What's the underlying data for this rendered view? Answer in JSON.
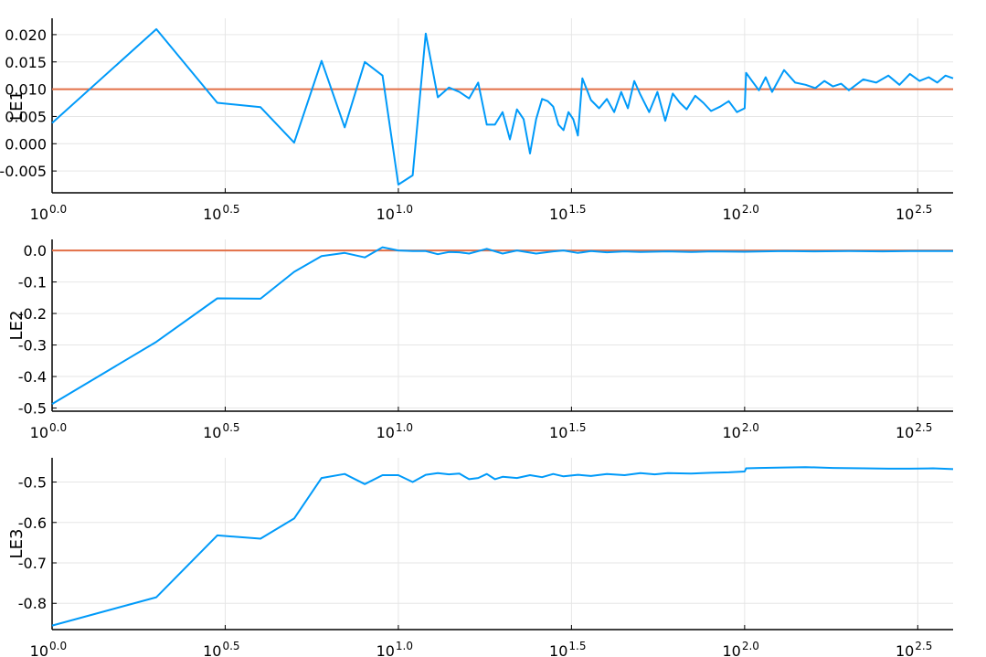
{
  "chart_data": [
    {
      "type": "line",
      "ylabel": "LE1",
      "xscale": "log10",
      "xlim": [
        1,
        400
      ],
      "ylim": [
        -0.009,
        0.023
      ],
      "grid": true,
      "legend": "none",
      "x_ticks": [
        {
          "base": "10",
          "exp": "0.0",
          "value": 1
        },
        {
          "base": "10",
          "exp": "0.5",
          "value": 3.162
        },
        {
          "base": "10",
          "exp": "1.0",
          "value": 10
        },
        {
          "base": "10",
          "exp": "1.5",
          "value": 31.62
        },
        {
          "base": "10",
          "exp": "2.0",
          "value": 100
        },
        {
          "base": "10",
          "exp": "2.5",
          "value": 316.2
        }
      ],
      "y_ticks": [
        {
          "value": -0.005,
          "label": "-0.005"
        },
        {
          "value": 0.0,
          "label": "0.000"
        },
        {
          "value": 0.005,
          "label": "0.005"
        },
        {
          "value": 0.01,
          "label": "0.010"
        },
        {
          "value": 0.015,
          "label": "0.015"
        },
        {
          "value": 0.02,
          "label": "0.020"
        }
      ],
      "reference_line": {
        "y": 0.01,
        "color": "#e26f46"
      },
      "series": [
        {
          "color": "#009af9",
          "x": [
            1,
            2,
            3,
            4,
            5,
            6,
            7,
            8,
            9,
            10,
            11,
            12,
            13,
            14,
            15,
            16,
            17,
            18,
            19,
            20,
            21,
            22,
            23,
            24,
            25,
            26,
            27,
            28,
            29,
            30,
            31,
            32,
            33,
            34,
            36,
            38,
            40,
            42,
            44,
            46,
            48,
            50,
            53,
            56,
            59,
            62,
            65,
            68,
            72,
            76,
            80,
            85,
            90,
            95,
            100,
            101,
            105,
            110,
            115,
            120,
            130,
            140,
            150,
            160,
            170,
            180,
            190,
            200,
            220,
            240,
            260,
            280,
            300,
            320,
            340,
            360,
            380,
            400
          ],
          "y": [
            0.0038,
            0.021,
            0.0075,
            0.0067,
            0.0002,
            0.0152,
            0.003,
            0.015,
            0.0125,
            -0.0075,
            -0.0058,
            0.0202,
            0.0085,
            0.0103,
            0.0095,
            0.0083,
            0.0112,
            0.0035,
            0.0035,
            0.0058,
            0.0008,
            0.0063,
            0.0045,
            -0.0018,
            0.0045,
            0.0082,
            0.0078,
            0.0068,
            0.0035,
            0.0025,
            0.0058,
            0.0045,
            0.0015,
            0.012,
            0.008,
            0.0065,
            0.0082,
            0.0058,
            0.0095,
            0.0065,
            0.0115,
            0.009,
            0.0058,
            0.0095,
            0.0042,
            0.0092,
            0.0075,
            0.0063,
            0.0088,
            0.0075,
            0.006,
            0.0068,
            0.0078,
            0.0058,
            0.0065,
            0.013,
            0.0115,
            0.0098,
            0.0122,
            0.0095,
            0.0135,
            0.0112,
            0.0108,
            0.0102,
            0.0115,
            0.0105,
            0.011,
            0.0098,
            0.0118,
            0.0112,
            0.0125,
            0.0108,
            0.0128,
            0.0115,
            0.0122,
            0.0112,
            0.0125,
            0.012
          ]
        }
      ]
    },
    {
      "type": "line",
      "ylabel": "LE2",
      "xscale": "log10",
      "xlim": [
        1,
        400
      ],
      "ylim": [
        -0.51,
        0.035
      ],
      "grid": true,
      "legend": "none",
      "x_ticks": [
        {
          "base": "10",
          "exp": "0.0",
          "value": 1
        },
        {
          "base": "10",
          "exp": "0.5",
          "value": 3.162
        },
        {
          "base": "10",
          "exp": "1.0",
          "value": 10
        },
        {
          "base": "10",
          "exp": "1.5",
          "value": 31.62
        },
        {
          "base": "10",
          "exp": "2.0",
          "value": 100
        },
        {
          "base": "10",
          "exp": "2.5",
          "value": 316.2
        }
      ],
      "y_ticks": [
        {
          "value": -0.5,
          "label": "-0.5"
        },
        {
          "value": -0.4,
          "label": "-0.4"
        },
        {
          "value": -0.3,
          "label": "-0.3"
        },
        {
          "value": -0.2,
          "label": "-0.2"
        },
        {
          "value": -0.1,
          "label": "-0.1"
        },
        {
          "value": 0.0,
          "label": "0.0"
        }
      ],
      "reference_line": {
        "y": 0.0,
        "color": "#e26f46"
      },
      "series": [
        {
          "color": "#009af9",
          "x": [
            1,
            2,
            3,
            4,
            5,
            6,
            7,
            8,
            9,
            10,
            11,
            12,
            13,
            14,
            15,
            16,
            18,
            20,
            22,
            25,
            28,
            30,
            33,
            36,
            40,
            45,
            50,
            60,
            70,
            80,
            100,
            130,
            160,
            200,
            250,
            300,
            350,
            400
          ],
          "y": [
            -0.487,
            -0.29,
            -0.152,
            -0.153,
            -0.068,
            -0.018,
            -0.008,
            -0.022,
            0.01,
            0.0,
            -0.002,
            -0.002,
            -0.012,
            -0.005,
            -0.006,
            -0.01,
            0.005,
            -0.01,
            0.0,
            -0.01,
            -0.003,
            0.0,
            -0.008,
            -0.002,
            -0.006,
            -0.003,
            -0.005,
            -0.003,
            -0.005,
            -0.003,
            -0.004,
            -0.002,
            -0.003,
            -0.002,
            -0.003,
            -0.002,
            -0.002,
            -0.002
          ]
        }
      ]
    },
    {
      "type": "line",
      "ylabel": "LE3",
      "xscale": "log10",
      "xlim": [
        1,
        400
      ],
      "ylim": [
        -0.865,
        -0.44
      ],
      "grid": true,
      "legend": "none",
      "x_ticks": [
        {
          "base": "10",
          "exp": "0.0",
          "value": 1
        },
        {
          "base": "10",
          "exp": "0.5",
          "value": 3.162
        },
        {
          "base": "10",
          "exp": "1.0",
          "value": 10
        },
        {
          "base": "10",
          "exp": "1.5",
          "value": 31.62
        },
        {
          "base": "10",
          "exp": "2.0",
          "value": 100
        },
        {
          "base": "10",
          "exp": "2.5",
          "value": 316.2
        }
      ],
      "y_ticks": [
        {
          "value": -0.8,
          "label": "-0.8"
        },
        {
          "value": -0.7,
          "label": "-0.7"
        },
        {
          "value": -0.6,
          "label": "-0.6"
        },
        {
          "value": -0.5,
          "label": "-0.5"
        }
      ],
      "series": [
        {
          "color": "#009af9",
          "x": [
            1,
            2,
            3,
            4,
            5,
            6,
            7,
            8,
            9,
            10,
            11,
            12,
            13,
            14,
            15,
            16,
            17,
            18,
            19,
            20,
            22,
            24,
            26,
            28,
            30,
            33,
            36,
            40,
            45,
            50,
            55,
            60,
            70,
            80,
            90,
            100,
            101,
            110,
            130,
            150,
            180,
            220,
            260,
            300,
            350,
            400
          ],
          "y": [
            -0.855,
            -0.785,
            -0.632,
            -0.64,
            -0.59,
            -0.49,
            -0.48,
            -0.505,
            -0.483,
            -0.483,
            -0.5,
            -0.482,
            -0.478,
            -0.481,
            -0.479,
            -0.493,
            -0.49,
            -0.48,
            -0.493,
            -0.487,
            -0.49,
            -0.483,
            -0.488,
            -0.48,
            -0.486,
            -0.482,
            -0.485,
            -0.48,
            -0.483,
            -0.478,
            -0.481,
            -0.478,
            -0.479,
            -0.477,
            -0.476,
            -0.474,
            -0.466,
            -0.465,
            -0.464,
            -0.463,
            -0.465,
            -0.466,
            -0.467,
            -0.467,
            -0.466,
            -0.468
          ]
        }
      ]
    }
  ]
}
